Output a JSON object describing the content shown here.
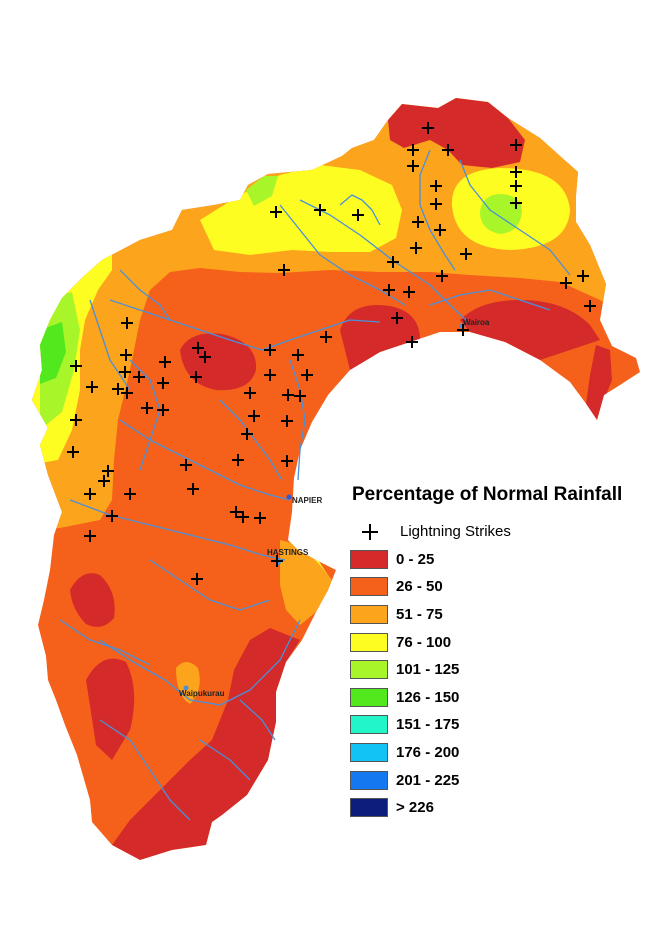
{
  "legend": {
    "title": "Percentage of Normal Rainfall",
    "lightning_label": "Lightning Strikes",
    "classes": [
      {
        "label": "0 - 25",
        "color": "#d42a2a"
      },
      {
        "label": "26 - 50",
        "color": "#f5601a"
      },
      {
        "label": "51 - 75",
        "color": "#fca41c"
      },
      {
        "label": "76 - 100",
        "color": "#fdfd22"
      },
      {
        "label": "101 - 125",
        "color": "#a8f52a"
      },
      {
        "label": "126 - 150",
        "color": "#52e81e"
      },
      {
        "label": "151 - 175",
        "color": "#22f6c8"
      },
      {
        "label": "176 - 200",
        "color": "#12c4f5"
      },
      {
        "label": "201 - 225",
        "color": "#1478f0"
      },
      {
        "label": "> 226",
        "color": "#0c1e7a"
      }
    ]
  },
  "towns": {
    "napier": "NAPIER",
    "hastings": "HASTINGS",
    "wairoa": "Wairoa",
    "waipukurau": "Waipukurau"
  },
  "colors": {
    "river": "#4a90d9",
    "background": "#ffffff"
  }
}
